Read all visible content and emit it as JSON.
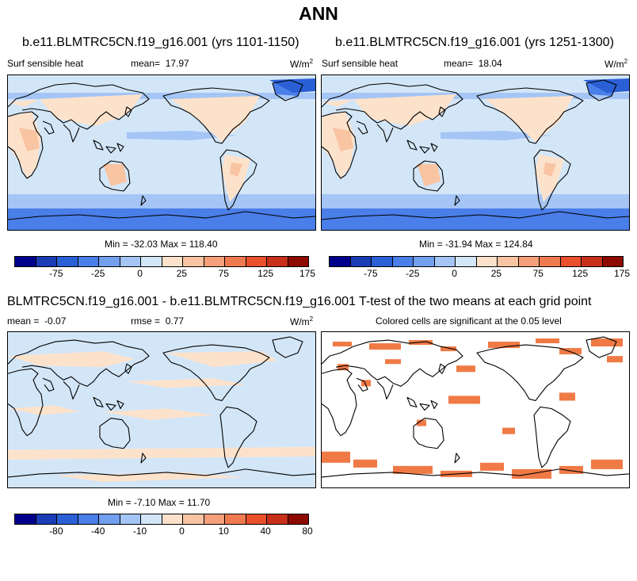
{
  "page": {
    "title": "ANN"
  },
  "panels": [
    {
      "id": "case1",
      "title": "b.e11.BLMTRC5CN.f19_g16.001 (yrs 1101-1150)",
      "variable": "Surf sensible heat",
      "mean_label": "mean=",
      "mean_value": "17.97",
      "units": "W/m",
      "units_sup": "2",
      "minmax": "Min = -32.03 Max = 118.40",
      "colorbar_ticks": [
        "-75",
        "-25",
        "0",
        "25",
        "75",
        "125",
        "175"
      ]
    },
    {
      "id": "case2",
      "title": "b.e11.BLMTRC5CN.f19_g16.001 (yrs 1251-1300)",
      "variable": "Surf sensible heat",
      "mean_label": "mean=",
      "mean_value": "18.04",
      "units": "W/m",
      "units_sup": "2",
      "minmax": "Min = -31.94 Max = 124.84",
      "colorbar_ticks": [
        "-75",
        "-25",
        "0",
        "25",
        "75",
        "125",
        "175"
      ]
    },
    {
      "id": "diff",
      "title": "BLMTRC5CN.f19_g16.001 - b.e11.BLMTRC5CN.f19_g16.001",
      "mean_label": "mean =",
      "mean_value": "-0.07",
      "rmse_label": "rmse =",
      "rmse_value": "0.77",
      "units": "W/m",
      "units_sup": "2",
      "minmax": "Min = -7.10 Max = 11.70",
      "colorbar_ticks": [
        "-80",
        "-40",
        "-10",
        "0",
        "10",
        "40",
        "80"
      ]
    },
    {
      "id": "ttest",
      "title": "T-test of the two means at each grid point",
      "subtitle": "Colored cells are significant at the 0.05 level"
    }
  ],
  "colors": {
    "palette": [
      "#00008c",
      "#1a3cb5",
      "#2a5fd6",
      "#4a7ee8",
      "#739fef",
      "#a4c5f5",
      "#d3e6f8",
      "#fde2cb",
      "#f8c4a2",
      "#f5a07a",
      "#f07a50",
      "#e9502b",
      "#c8301a",
      "#8c0a00"
    ],
    "significant": "#f07a45",
    "land_outline": "#000000"
  }
}
